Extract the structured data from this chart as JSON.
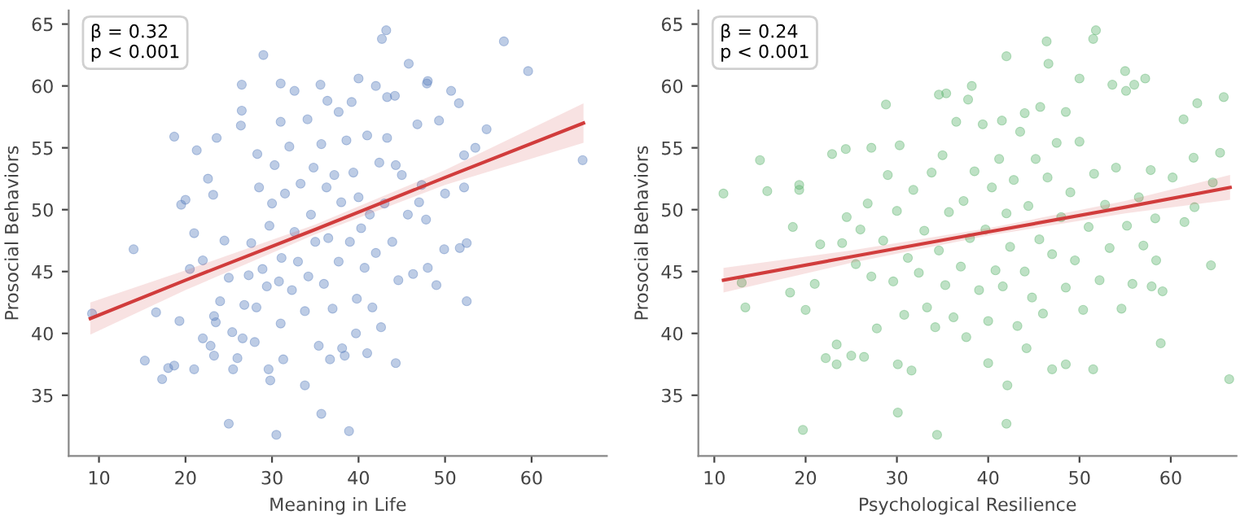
{
  "chart_data": [
    {
      "type": "scatter",
      "xlabel": "Meaning in Life",
      "ylabel": "Prosocial Behaviors",
      "xlim": [
        6.5,
        68.7
      ],
      "ylim": [
        30.1,
        66.1
      ],
      "xticks": [
        10,
        20,
        30,
        40,
        50,
        60
      ],
      "yticks": [
        35,
        40,
        45,
        50,
        55,
        60,
        65
      ],
      "grid": false,
      "annotations": [
        "β = 0.32\np < 0.001"
      ],
      "series": [
        {
          "marker": "circle",
          "color": "#5b7fbf",
          "x": [
            9.2,
            14,
            15.3,
            17.3,
            18,
            18.7,
            18.7,
            16.6,
            19.3,
            19.5,
            20,
            21,
            21.3,
            23.6,
            25,
            30.5,
            29,
            35.7,
            38.9,
            42.7,
            43.2,
            56.8,
            59.6,
            65.9,
            54.8,
            52.5,
            52.5,
            51.7,
            49.9,
            49,
            45.8,
            48,
            50.7,
            51.6,
            49.3,
            47.9,
            52.2,
            53.5,
            52.2,
            50,
            44.3,
            39.7,
            41,
            33.8,
            29.8,
            29.6,
            26.5,
            26.5,
            26.4,
            31,
            32.6,
            35.6,
            40,
            42,
            43.3,
            44.2,
            37.7,
            39.2,
            34.1,
            36.4,
            31,
            20.5,
            21,
            22,
            22.6,
            23.2,
            23.3,
            23.5,
            22,
            22.9,
            23.3,
            24,
            24.5,
            25,
            25.4,
            25.5,
            26,
            26.6,
            26.8,
            27.3,
            27.6,
            28,
            28.2,
            28.3,
            28.5,
            28.9,
            29.4,
            29.7,
            30,
            30.3,
            30.8,
            31,
            31.3,
            31.1,
            31.5,
            32,
            32.3,
            32.6,
            33,
            33.3,
            33.8,
            34.2,
            34.5,
            34.8,
            35,
            35.4,
            35.7,
            36,
            36.3,
            36.5,
            37,
            37.2,
            37.7,
            38,
            38.4,
            38.6,
            39,
            39.4,
            39.8,
            40,
            40.3,
            40.7,
            41,
            41.3,
            41.6,
            42,
            42.4,
            42.6,
            43,
            43.3,
            43.9,
            44.3,
            44.6,
            45,
            45.7,
            46.3,
            46.8,
            47,
            47.3,
            47.8,
            48,
            38.1,
            36.7
          ],
          "values": [
            41.6,
            46.8,
            37.8,
            36.3,
            37.2,
            37.4,
            55.9,
            41.7,
            41.0,
            50.4,
            50.8,
            37.1,
            54.8,
            55.8,
            32.7,
            31.8,
            62.5,
            33.5,
            32.1,
            63.8,
            64.5,
            63.6,
            61.2,
            54.0,
            56.5,
            42.6,
            47.3,
            46.9,
            46.8,
            43.9,
            61.8,
            60.4,
            59.6,
            58.6,
            57.2,
            60.2,
            54.4,
            55,
            51.8,
            51.3,
            37.6,
            40,
            38.4,
            35.8,
            36.2,
            37.1,
            60.1,
            58,
            56.8,
            60.2,
            59.6,
            60.1,
            60.6,
            60,
            59.1,
            59.2,
            57.9,
            58.7,
            57.3,
            58.8,
            57.1,
            45.2,
            48.1,
            45.9,
            52.5,
            51.2,
            41.4,
            40.9,
            39.6,
            39.0,
            38.2,
            42.6,
            47.5,
            44.5,
            40.1,
            37.1,
            38,
            39.6,
            42.3,
            44.7,
            47.3,
            39.3,
            42.1,
            54.5,
            51.8,
            45.2,
            43.8,
            48.7,
            50.5,
            53.6,
            44.2,
            40.8,
            37.9,
            46.1,
            51.3,
            55.1,
            43.5,
            48.2,
            45.8,
            52.1,
            41.8,
            44.6,
            49.6,
            53.4,
            47.4,
            39,
            55.3,
            44,
            51.8,
            47.7,
            42,
            52.8,
            45.8,
            50.6,
            38.2,
            55.6,
            47.4,
            53,
            42.8,
            51,
            48.5,
            45.3,
            56,
            49.6,
            42.1,
            46.5,
            53.8,
            40.5,
            50.5,
            55.8,
            47.4,
            53.6,
            44.3,
            52.8,
            49.6,
            44.8,
            56.9,
            50.6,
            52,
            49.2,
            45.3,
            38.8,
            37.9
          ]
        },
        {
          "type": "line",
          "color": "#d13c3c",
          "x": [
            9,
            20,
            35,
            50,
            66
          ],
          "values": [
            41.2,
            44.3,
            48.4,
            52.6,
            57
          ],
          "lower": [
            39.9,
            43.5,
            48.0,
            52.0,
            55.4
          ],
          "upper": [
            42.5,
            45.1,
            48.8,
            53.2,
            58.6
          ]
        }
      ]
    },
    {
      "type": "scatter",
      "xlabel": "Psychological Resilience",
      "ylabel": "Prosocial Behaviors",
      "xlim": [
        8.25,
        67.2
      ],
      "ylim": [
        30.1,
        66.1
      ],
      "xticks": [
        10,
        20,
        30,
        40,
        50,
        60
      ],
      "yticks": [
        35,
        40,
        45,
        50,
        55,
        60,
        65
      ],
      "grid": false,
      "annotations": [
        "β = 0.24\np < 0.001"
      ],
      "series": [
        {
          "marker": "circle",
          "color": "#5cb46e",
          "x": [
            11,
            13,
            13.4,
            15,
            15.8,
            18.3,
            18.6,
            19.3,
            19.3,
            19.7,
            20,
            21,
            21.6,
            22.2,
            22.9,
            23.4,
            23.4,
            24.4,
            25,
            26.4,
            27.2,
            28.8,
            30.1,
            34.4,
            34.6,
            35.4,
            38.2,
            42,
            42,
            42.1,
            46.4,
            46.6,
            50,
            51.5,
            51.8,
            53.6,
            55,
            55.1,
            57.2,
            56,
            62.9,
            65.8,
            66.4,
            58.9,
            59.1,
            57.9,
            58.4,
            64.4,
            64.6,
            62.6,
            61.5,
            61.4,
            62.5,
            65.4,
            48.5,
            51.5,
            47,
            40,
            44.2,
            31.6,
            30.1,
            24,
            24.5,
            25.5,
            26,
            26.8,
            27.2,
            27.8,
            28.5,
            29,
            29.6,
            30,
            30.3,
            30.8,
            31.2,
            31.8,
            32.4,
            33,
            33.3,
            33.8,
            34.2,
            34.6,
            35,
            35.3,
            35.7,
            36.2,
            36.5,
            37,
            37.3,
            37.6,
            38,
            38.5,
            39,
            39.4,
            39.7,
            40,
            40.4,
            40.8,
            41.2,
            41.6,
            42,
            42.4,
            42.8,
            43.2,
            43.5,
            44,
            44.4,
            44.8,
            45.2,
            45.6,
            46,
            46.5,
            47,
            47.5,
            48,
            48.5,
            49,
            49.5,
            50,
            50.4,
            51,
            51.6,
            52.2,
            52.8,
            53.3,
            54,
            54.6,
            55.2,
            55.8,
            56.5,
            57,
            57.8,
            58.3,
            60.2,
            45.7,
            48.5,
            44,
            41.5,
            37.8
          ],
          "values": [
            51.3,
            44.1,
            42.1,
            54,
            51.5,
            43.3,
            48.6,
            52,
            51.6,
            32.2,
            41.9,
            44,
            47.2,
            38,
            54.5,
            37.5,
            39.1,
            54.9,
            38.2,
            38.1,
            55,
            58.5,
            33.6,
            31.8,
            59.3,
            59.4,
            60,
            62.4,
            32.7,
            35.8,
            63.6,
            61.8,
            60.6,
            63.8,
            64.5,
            60.1,
            61.2,
            59.6,
            60.6,
            60.1,
            58.6,
            59.1,
            36.3,
            39.2,
            43.4,
            43.8,
            45.9,
            45.5,
            52.2,
            50.2,
            49,
            57.3,
            54.2,
            54.6,
            37.5,
            37.1,
            37.1,
            37.6,
            38.8,
            37,
            37.5,
            47.3,
            49.4,
            45.6,
            48.4,
            50.5,
            44.6,
            40.4,
            47.5,
            52.8,
            44.2,
            49.9,
            55.2,
            41.5,
            46.1,
            51.6,
            44.9,
            48.3,
            42.1,
            53,
            40.5,
            46.7,
            54.4,
            43.9,
            49.8,
            41.3,
            57.1,
            45.4,
            50.7,
            39.7,
            47.7,
            53.1,
            43.5,
            56.9,
            48.4,
            41,
            51.8,
            45.1,
            54.1,
            43.8,
            49.7,
            47,
            52.4,
            40.6,
            56.3,
            45,
            50.3,
            42.9,
            54.1,
            47.6,
            41.6,
            52.6,
            46.4,
            55.4,
            49.4,
            43.7,
            51.4,
            45.9,
            55.5,
            41.9,
            48.6,
            52.9,
            44.3,
            50.4,
            46.9,
            53.4,
            42,
            48.7,
            44,
            51,
            47.1,
            53.2,
            49.3,
            52.6,
            58.3,
            57.9,
            57.8,
            57.2,
            58.9
          ]
        },
        {
          "type": "line",
          "color": "#d13c3c",
          "x": [
            11,
            25,
            40,
            55,
            66.5
          ],
          "values": [
            44.3,
            46.2,
            48.2,
            50.2,
            51.8
          ],
          "lower": [
            43.3,
            45.7,
            47.9,
            49.7,
            50.8
          ],
          "upper": [
            45.3,
            46.7,
            48.5,
            50.7,
            52.8
          ]
        }
      ]
    }
  ]
}
